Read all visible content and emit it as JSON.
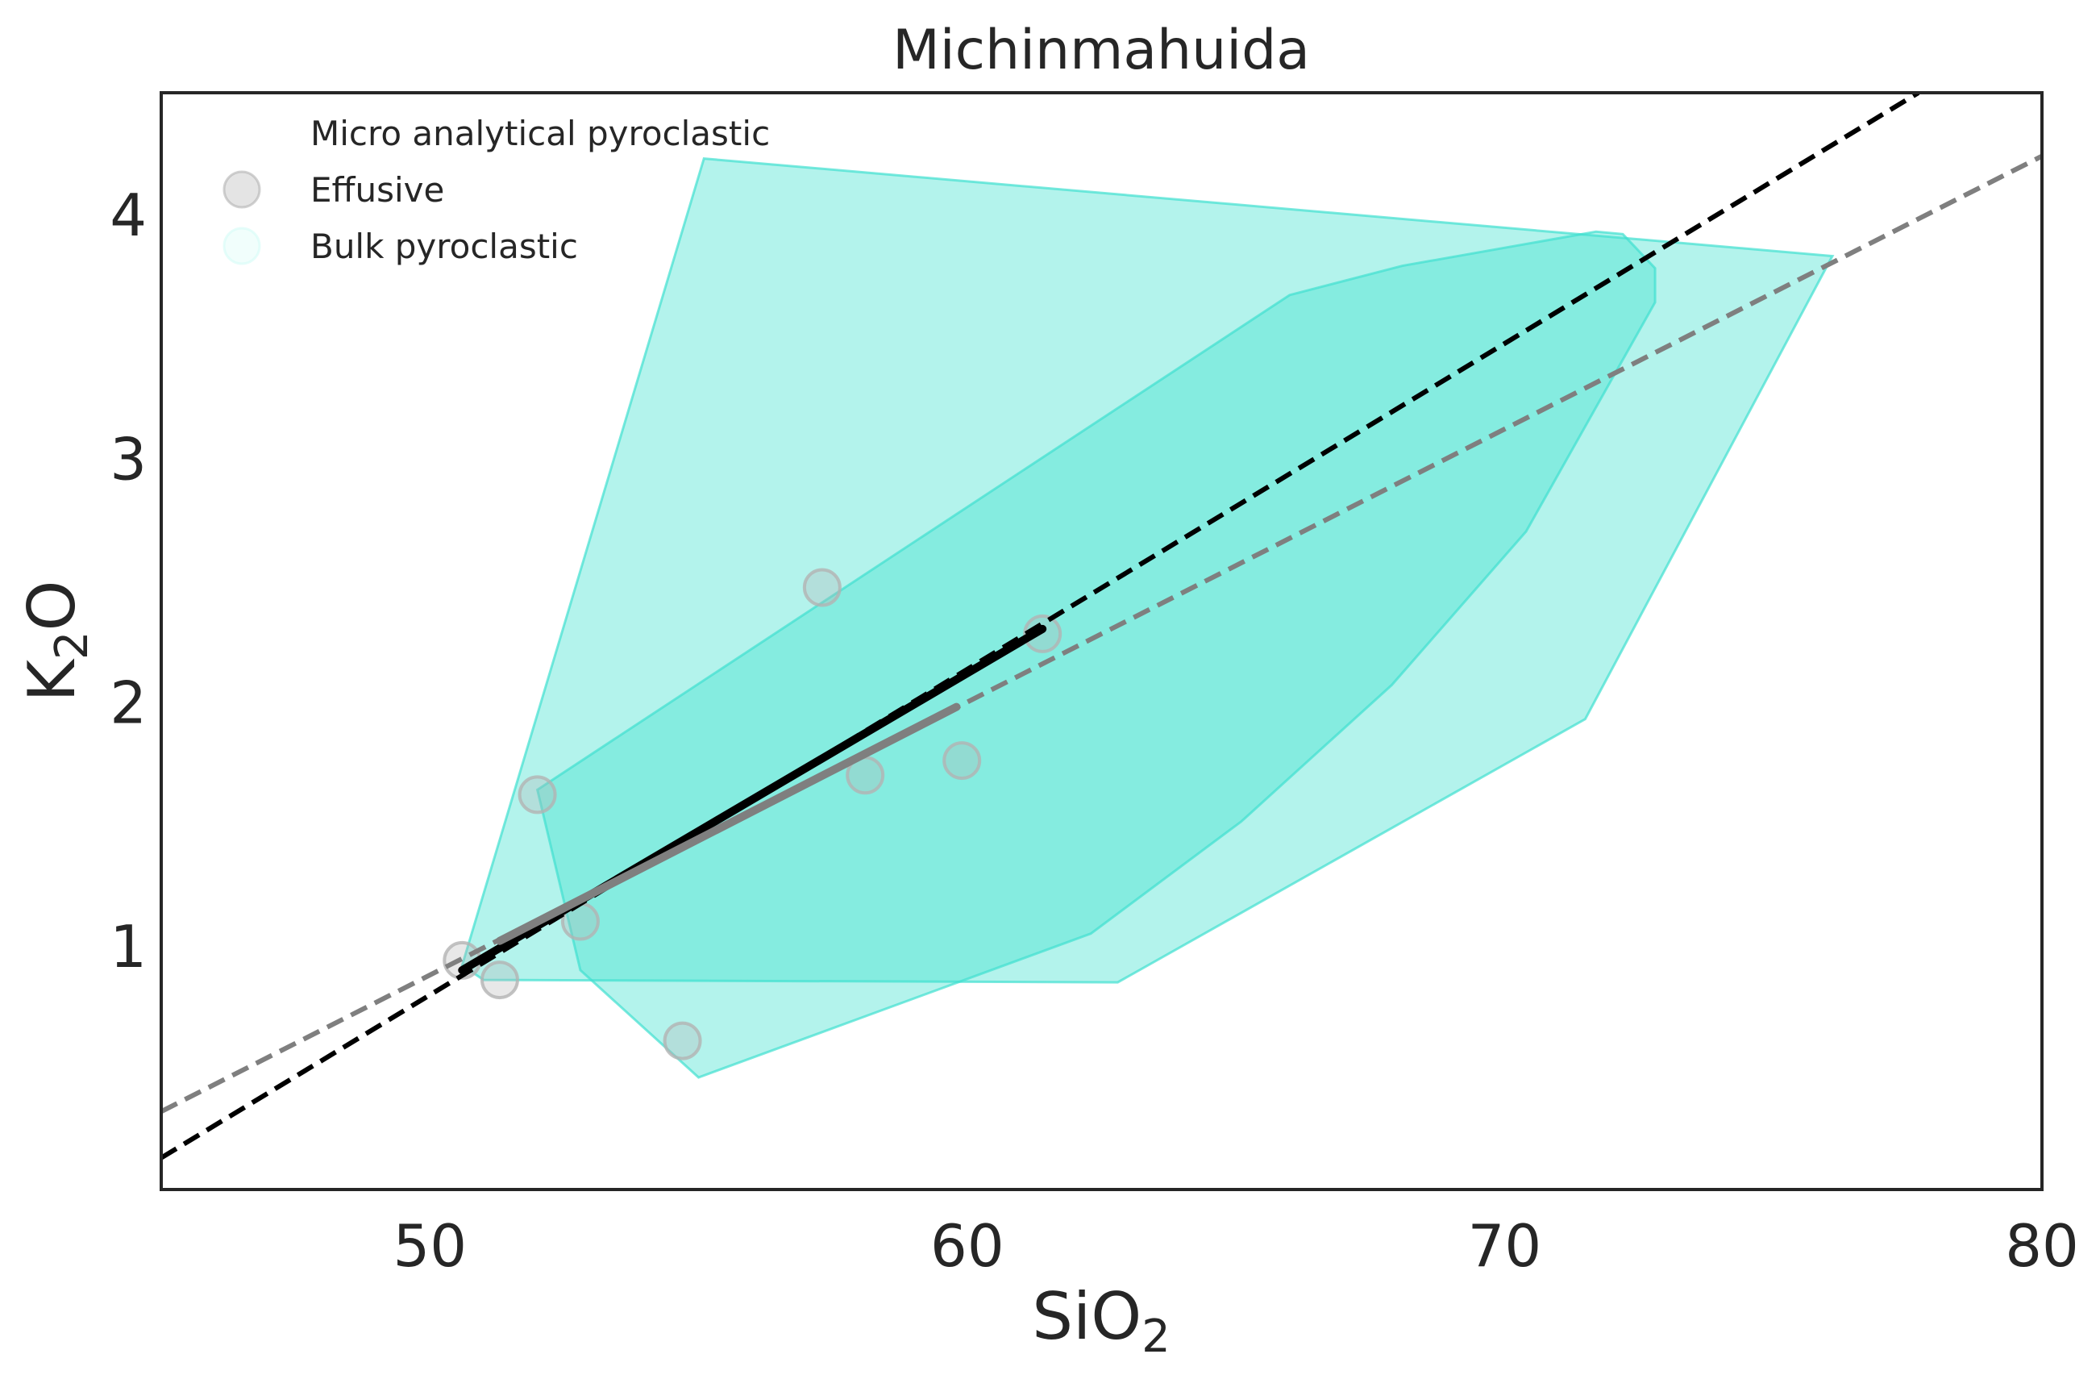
{
  "chart_data": {
    "type": "scatter",
    "title": "Michinmahuida",
    "xlabel": {
      "main": "SiO",
      "sub": "2"
    },
    "ylabel": {
      "main": "K",
      "sub": "2",
      "tail": "O"
    },
    "xlim": [
      45,
      80
    ],
    "ylim": [
      0,
      4.5
    ],
    "xticks": [
      50,
      60,
      70,
      80
    ],
    "yticks": [
      1,
      2,
      3,
      4
    ],
    "grid": false,
    "legend": {
      "placement": "top-left",
      "entries": [
        {
          "label": "Micro analytical pyroclastic",
          "color": null
        },
        {
          "label": "Effusive",
          "color": "#b3b3b3"
        },
        {
          "label": "Bulk pyroclastic",
          "color": "#d6fbf6"
        }
      ]
    },
    "hulls": [
      {
        "color": "#40e0d0",
        "opacity": 0.4,
        "points": [
          [
            55.1,
            4.23
          ],
          [
            76.1,
            3.83
          ],
          [
            71.5,
            1.93
          ],
          [
            62.8,
            0.85
          ],
          [
            51.0,
            0.86
          ],
          [
            50.6,
            0.92
          ]
        ]
      },
      {
        "color": "#40e0d0",
        "opacity": 0.4,
        "points": [
          [
            52.0,
            1.64
          ],
          [
            66.0,
            3.67
          ],
          [
            68.1,
            3.79
          ],
          [
            71.7,
            3.93
          ],
          [
            72.2,
            3.92
          ],
          [
            72.8,
            3.78
          ],
          [
            72.8,
            3.64
          ],
          [
            70.4,
            2.7
          ],
          [
            67.9,
            2.07
          ],
          [
            65.1,
            1.51
          ],
          [
            62.3,
            1.05
          ],
          [
            55.0,
            0.46
          ],
          [
            52.8,
            0.9
          ]
        ]
      }
    ],
    "series": [
      {
        "name": "Effusive",
        "color": "#b3b3b3",
        "points": [
          [
            50.6,
            0.94
          ],
          [
            51.3,
            0.86
          ],
          [
            52.0,
            1.62
          ],
          [
            52.8,
            1.1
          ],
          [
            54.7,
            0.61
          ],
          [
            57.3,
            2.47
          ],
          [
            58.1,
            1.7
          ],
          [
            59.9,
            1.76
          ],
          [
            61.4,
            2.28
          ]
        ]
      }
    ],
    "trend_lines": [
      {
        "color": "#000000",
        "style": "dashed",
        "points": [
          [
            45,
            0.13
          ],
          [
            77.7,
            4.5
          ]
        ]
      },
      {
        "color": "#000000",
        "style": "solid",
        "points": [
          [
            50.6,
            0.9
          ],
          [
            61.4,
            2.3
          ]
        ]
      },
      {
        "color": "#7f7f7f",
        "style": "dashed",
        "points": [
          [
            45,
            0.32
          ],
          [
            80,
            4.24
          ]
        ]
      },
      {
        "color": "#7f7f7f",
        "style": "solid",
        "points": [
          [
            51.3,
            1.02
          ],
          [
            59.8,
            1.98
          ]
        ]
      }
    ]
  }
}
